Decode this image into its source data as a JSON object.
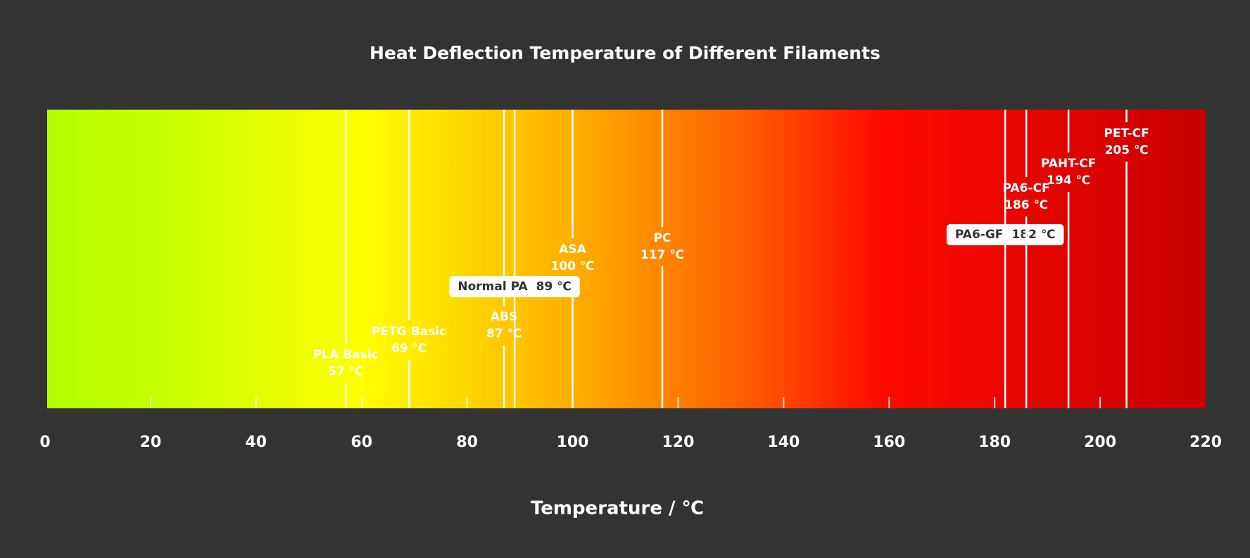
{
  "chart_data": {
    "type": "marker-strip",
    "title": "Heat Deflection Temperature of Different Filaments",
    "x_label": "Temperature / ℃",
    "categories": [
      "PLA Basic",
      "PETG Basic",
      "ABS",
      "Normal PA",
      "ASA",
      "PC",
      "PA6-GF",
      "PA6-CF",
      "PAHT-CF",
      "PET-CF"
    ],
    "values": [
      57,
      69,
      87,
      89,
      100,
      117,
      182,
      186,
      194,
      205
    ],
    "value_labels": [
      "57 ℃",
      "69 ℃",
      "87 ℃",
      "89 ℃",
      "100 ℃",
      "117 ℃",
      "182 ℃",
      "186 ℃",
      "194 ℃",
      "205 ℃"
    ],
    "xlim": [
      0,
      220
    ],
    "xticks": [
      0,
      20,
      40,
      60,
      80,
      100,
      120,
      140,
      160,
      180,
      200,
      220
    ]
  }
}
